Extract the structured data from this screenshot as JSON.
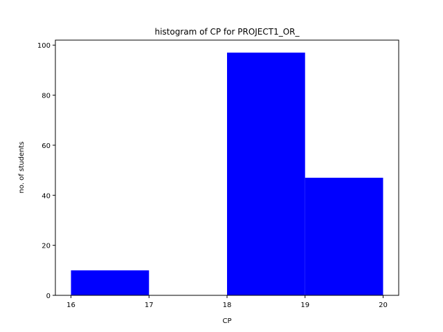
{
  "chart_data": {
    "type": "bar",
    "title": "histogram of CP for PROJECT1_OR_",
    "xlabel": "CP",
    "ylabel": "no. of students",
    "bins": [
      {
        "start": 16,
        "end": 17,
        "value": 10
      },
      {
        "start": 17,
        "end": 18,
        "value": 0
      },
      {
        "start": 18,
        "end": 19,
        "value": 97
      },
      {
        "start": 19,
        "end": 20,
        "value": 47
      }
    ],
    "xlim": [
      15.8,
      20.2
    ],
    "ylim": [
      0,
      102
    ],
    "xticks": [
      16,
      17,
      18,
      19,
      20
    ],
    "yticks": [
      0,
      20,
      40,
      60,
      80,
      100
    ],
    "bar_color": "#0000ff",
    "grid": false
  }
}
